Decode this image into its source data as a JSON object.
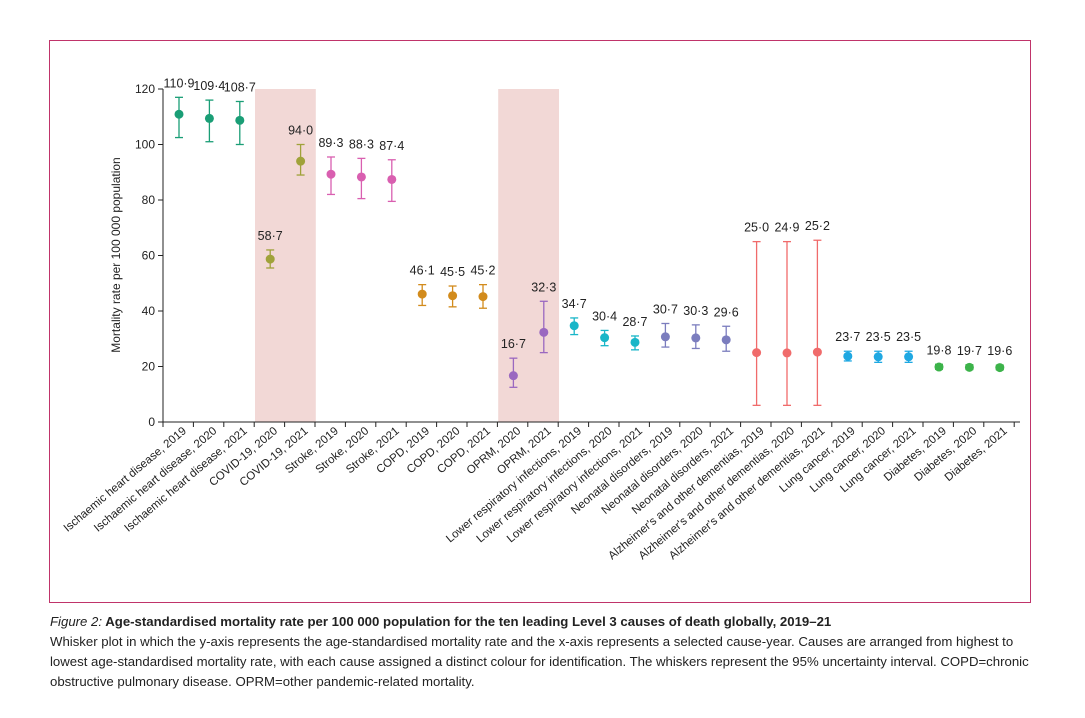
{
  "colors": {
    "frame": "#c0346a",
    "shade": "#f2d8d6",
    "ihd": "#1a9e76",
    "covid": "#a0a23a",
    "stroke": "#d95fb0",
    "copd": "#d28b1c",
    "oprm": "#9a68c0",
    "lri": "#19b6c8",
    "neonatal": "#7b7dbe",
    "alzheimer": "#f06b6b",
    "lung": "#1fa8e2",
    "diabetes": "#3cb34a"
  },
  "caption": {
    "figure_label": "Figure 2:",
    "title": "Age-standardised mortality rate per 100 000 population for the ten leading Level 3 causes of death globally, 2019–21",
    "body": "Whisker plot in which the y-axis represents the age-standardised mortality rate and the x-axis represents a selected cause-year. Causes are arranged from highest to lowest age-standardised mortality rate, with each cause assigned a distinct colour for identification. The whiskers represent the 95% uncertainty interval. COPD=chronic obstructive pulmonary disease. OPRM=other pandemic-related mortality."
  },
  "chart_data": {
    "type": "scatter",
    "ylabel": "Mortality rate per 100 000 population",
    "xlabel": "",
    "ylim": [
      0,
      120
    ],
    "yticks": [
      "0",
      "20",
      "40",
      "60",
      "80",
      "100",
      "120"
    ],
    "shaded_categories": [
      "COVID-19, 2020",
      "COVID-19, 2021",
      "OPRM, 2020",
      "OPRM, 2021"
    ],
    "points": [
      {
        "category": "Ischaemic heart disease, 2019",
        "value": 110.9,
        "label": "110·9",
        "lower": 102.5,
        "upper": 117.0,
        "color_key": "ihd"
      },
      {
        "category": "Ischaemic heart disease, 2020",
        "value": 109.4,
        "label": "109·4",
        "lower": 101.0,
        "upper": 116.0,
        "color_key": "ihd"
      },
      {
        "category": "Ischaemic heart disease, 2021",
        "value": 108.7,
        "label": "108·7",
        "lower": 100.0,
        "upper": 115.5,
        "color_key": "ihd"
      },
      {
        "category": "COVID-19, 2020",
        "value": 58.7,
        "label": "58·7",
        "lower": 55.5,
        "upper": 62.0,
        "color_key": "covid"
      },
      {
        "category": "COVID-19, 2021",
        "value": 94.0,
        "label": "94·0",
        "lower": 89.0,
        "upper": 100.0,
        "color_key": "covid"
      },
      {
        "category": "Stroke, 2019",
        "value": 89.3,
        "label": "89·3",
        "lower": 82.0,
        "upper": 95.5,
        "color_key": "stroke"
      },
      {
        "category": "Stroke, 2020",
        "value": 88.3,
        "label": "88·3",
        "lower": 80.5,
        "upper": 95.0,
        "color_key": "stroke"
      },
      {
        "category": "Stroke, 2021",
        "value": 87.4,
        "label": "87·4",
        "lower": 79.5,
        "upper": 94.5,
        "color_key": "stroke"
      },
      {
        "category": "COPD, 2019",
        "value": 46.1,
        "label": "46·1",
        "lower": 42.0,
        "upper": 49.5,
        "color_key": "copd"
      },
      {
        "category": "COPD, 2020",
        "value": 45.5,
        "label": "45·5",
        "lower": 41.5,
        "upper": 49.0,
        "color_key": "copd"
      },
      {
        "category": "COPD, 2021",
        "value": 45.2,
        "label": "45·2",
        "lower": 41.0,
        "upper": 49.5,
        "color_key": "copd"
      },
      {
        "category": "OPRM, 2020",
        "value": 16.7,
        "label": "16·7",
        "lower": 12.5,
        "upper": 23.0,
        "color_key": "oprm"
      },
      {
        "category": "OPRM, 2021",
        "value": 32.3,
        "label": "32·3",
        "lower": 25.0,
        "upper": 43.5,
        "color_key": "oprm"
      },
      {
        "category": "Lower respiratory infections, 2019",
        "value": 34.7,
        "label": "34·7",
        "lower": 31.5,
        "upper": 37.5,
        "color_key": "lri"
      },
      {
        "category": "Lower respiratory infections, 2020",
        "value": 30.4,
        "label": "30·4",
        "lower": 27.5,
        "upper": 33.0,
        "color_key": "lri"
      },
      {
        "category": "Lower respiratory infections, 2021",
        "value": 28.7,
        "label": "28·7",
        "lower": 26.0,
        "upper": 31.0,
        "color_key": "lri"
      },
      {
        "category": "Neonatal disorders, 2019",
        "value": 30.7,
        "label": "30·7",
        "lower": 27.0,
        "upper": 35.5,
        "color_key": "neonatal"
      },
      {
        "category": "Neonatal disorders, 2020",
        "value": 30.3,
        "label": "30·3",
        "lower": 26.5,
        "upper": 35.0,
        "color_key": "neonatal"
      },
      {
        "category": "Neonatal disorders, 2021",
        "value": 29.6,
        "label": "29·6",
        "lower": 25.5,
        "upper": 34.5,
        "color_key": "neonatal"
      },
      {
        "category": "Alzheimer's and other dementias, 2019",
        "value": 25.0,
        "label": "25·0",
        "lower": 6.0,
        "upper": 65.0,
        "color_key": "alzheimer"
      },
      {
        "category": "Alzheimer's and other dementias, 2020",
        "value": 24.9,
        "label": "24·9",
        "lower": 6.0,
        "upper": 65.0,
        "color_key": "alzheimer"
      },
      {
        "category": "Alzheimer's and other dementias, 2021",
        "value": 25.2,
        "label": "25·2",
        "lower": 6.0,
        "upper": 65.5,
        "color_key": "alzheimer"
      },
      {
        "category": "Lung cancer, 2019",
        "value": 23.7,
        "label": "23·7",
        "lower": 22.0,
        "upper": 25.5,
        "color_key": "lung"
      },
      {
        "category": "Lung cancer, 2020",
        "value": 23.5,
        "label": "23·5",
        "lower": 21.5,
        "upper": 25.5,
        "color_key": "lung"
      },
      {
        "category": "Lung cancer, 2021",
        "value": 23.5,
        "label": "23·5",
        "lower": 21.5,
        "upper": 25.5,
        "color_key": "lung"
      },
      {
        "category": "Diabetes, 2019",
        "value": 19.8,
        "label": "19·8",
        "lower": 19.0,
        "upper": 20.8,
        "color_key": "diabetes"
      },
      {
        "category": "Diabetes, 2020",
        "value": 19.7,
        "label": "19·7",
        "lower": 18.9,
        "upper": 20.6,
        "color_key": "diabetes"
      },
      {
        "category": "Diabetes, 2021",
        "value": 19.6,
        "label": "19·6",
        "lower": 18.8,
        "upper": 20.5,
        "color_key": "diabetes"
      }
    ]
  }
}
